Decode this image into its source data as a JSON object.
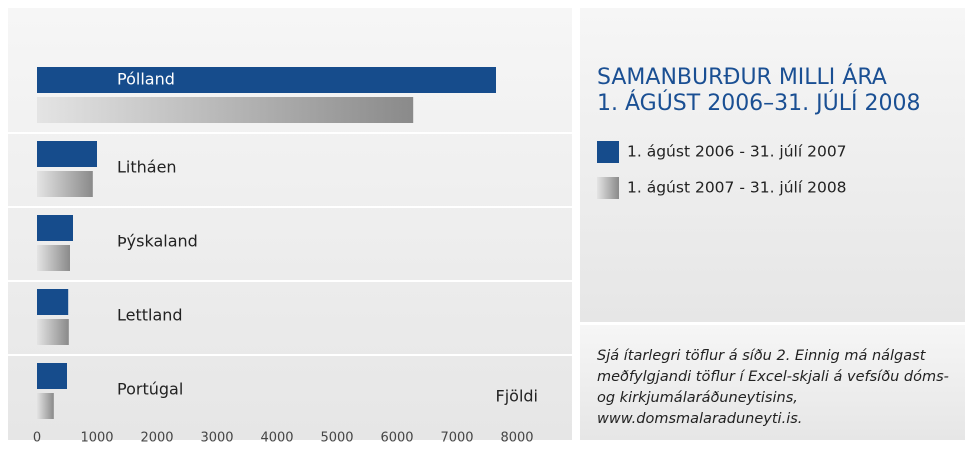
{
  "chart_data": {
    "type": "bar",
    "orientation": "horizontal",
    "title": "SAMANBURÐUR MILLI ÁRA",
    "subtitle": "1. ÁGÚST 2006–31. JÚLÍ 2008",
    "xlabel": "Fjöldi",
    "categories": [
      "Pólland",
      "Litháen",
      "Þýskaland",
      "Lettland",
      "Portúgal"
    ],
    "series": [
      {
        "name": "1. ágúst 2006 - 31. júlí 2007",
        "color": "#164c8c",
        "values": [
          7650,
          1000,
          600,
          520,
          500
        ]
      },
      {
        "name": "1. ágúst 2007 - 31. júlí 2008",
        "color": "#8a8a8a",
        "values": [
          6270,
          930,
          550,
          530,
          280
        ]
      }
    ],
    "xlim": [
      0,
      8000
    ],
    "xticks": [
      0,
      1000,
      2000,
      3000,
      4000,
      5000,
      6000,
      7000,
      8000
    ],
    "note": "Sjá ítarlegri töflur á síðu 2. Einnig má nálgast meðfylgjandi töflur í Excel-skjali á vefsíðu dóms- og kirkjumálaráðuneytisins, www.domsmalaraduneyti.is."
  }
}
